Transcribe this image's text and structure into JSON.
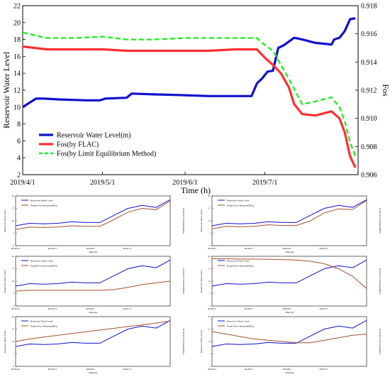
{
  "main": {
    "ylabel": "Reservoir Water Level",
    "ylabel_right": "Fos",
    "xlabel": "Time (h)",
    "legend": {
      "water": "Reservoir Water Level(m)",
      "flac": "Fos(by FLAC)",
      "lem": "Fos(by Limit Equilibrium Method)"
    }
  },
  "small_panels": {
    "ylabel": "Reservoir Water Level",
    "xlabel": "Time (h)",
    "legend_water": "Reservoir Water Level",
    "pore_labels": [
      "Point6-Pore Pressure(KPa)",
      "Point5-Pore Pressure(KPa)",
      "Point4-Pore Pressure(KPa)",
      "Point3-Pore Pressure(KPa)",
      "Point2-Pore Pressure(KPa)",
      "Point1-Pore Pressure(KPa)"
    ],
    "right_ylabel": "Point-Pore Pressure(KPa)"
  },
  "colors": {
    "water": "#1010cc",
    "flac": "#ff3030",
    "lem": "#22ee22",
    "pore": "#a0522d"
  },
  "chart_data": [
    {
      "type": "line",
      "title": "",
      "xlabel": "Time (h)",
      "ylabel": "Reservoir Water Level",
      "ylabel_right": "Fos",
      "x_ticks": [
        "2019/4/1",
        "2019/5/1",
        "2019/6/1",
        "2019/7/1"
      ],
      "xlim": [
        "2019/4/1",
        "2019/8/5"
      ],
      "ylim": [
        2,
        22
      ],
      "y_ticks": [
        2,
        4,
        6,
        8,
        10,
        12,
        14,
        16,
        18,
        20,
        22
      ],
      "ylim_right": [
        0.906,
        0.918
      ],
      "y_ticks_right": [
        0.906,
        0.908,
        0.91,
        0.912,
        0.914,
        0.916,
        0.918
      ],
      "legend_position": "lower-left",
      "series": [
        {
          "name": "Reservoir Water Level(m)",
          "axis": "left",
          "x": [
            "2019/4/1",
            "2019/4/3",
            "2019/4/6",
            "2019/4/9",
            "2019/4/15",
            "2019/4/25",
            "2019/4/30",
            "2019/5/2",
            "2019/5/10",
            "2019/5/12",
            "2019/5/20",
            "2019/6/1",
            "2019/6/10",
            "2019/6/20",
            "2019/6/26",
            "2019/6/28",
            "2019/6/30",
            "2019/7/2",
            "2019/7/4",
            "2019/7/6",
            "2019/7/8",
            "2019/7/12",
            "2019/7/15",
            "2019/7/20",
            "2019/7/26",
            "2019/7/27",
            "2019/7/29",
            "2019/7/31",
            "2019/8/2",
            "2019/8/4"
          ],
          "y": [
            10.0,
            10.4,
            11.0,
            11.0,
            10.9,
            10.8,
            10.8,
            11.0,
            11.1,
            11.6,
            11.5,
            11.4,
            11.3,
            11.3,
            11.3,
            12.8,
            13.4,
            14.2,
            14.3,
            17.0,
            17.3,
            18.2,
            18.0,
            17.6,
            17.4,
            18.0,
            18.2,
            19.0,
            20.4,
            20.5
          ]
        },
        {
          "name": "Fos(by FLAC)",
          "axis": "right",
          "x": [
            "2019/4/1",
            "2019/4/10",
            "2019/4/20",
            "2019/5/1",
            "2019/5/10",
            "2019/5/20",
            "2019/6/1",
            "2019/6/10",
            "2019/6/20",
            "2019/6/28",
            "2019/7/1",
            "2019/7/4",
            "2019/7/7",
            "2019/7/10",
            "2019/7/12",
            "2019/7/15",
            "2019/7/20",
            "2019/7/26",
            "2019/7/29",
            "2019/7/31",
            "2019/8/2",
            "2019/8/4"
          ],
          "y": [
            0.9151,
            0.9149,
            0.9149,
            0.9149,
            0.9148,
            0.9148,
            0.9148,
            0.9148,
            0.9149,
            0.9149,
            0.9143,
            0.9138,
            0.9132,
            0.9122,
            0.911,
            0.9103,
            0.9102,
            0.9105,
            0.91,
            0.909,
            0.9073,
            0.9065
          ]
        },
        {
          "name": "Fos(by Limit Equilibrium Method)",
          "axis": "right",
          "x": [
            "2019/4/1",
            "2019/4/10",
            "2019/4/20",
            "2019/5/1",
            "2019/5/10",
            "2019/5/20",
            "2019/6/1",
            "2019/6/10",
            "2019/6/20",
            "2019/6/28",
            "2019/7/1",
            "2019/7/4",
            "2019/7/7",
            "2019/7/10",
            "2019/7/15",
            "2019/7/20",
            "2019/7/26",
            "2019/7/29",
            "2019/7/31",
            "2019/8/2",
            "2019/8/4"
          ],
          "y": [
            0.9161,
            0.9157,
            0.9157,
            0.9158,
            0.9156,
            0.9156,
            0.9157,
            0.9157,
            0.9157,
            0.9157,
            0.9152,
            0.9148,
            0.9138,
            0.9128,
            0.911,
            0.9112,
            0.9115,
            0.9108,
            0.9098,
            0.9083,
            0.9073
          ]
        }
      ]
    },
    {
      "type": "line",
      "xlabel": "Time (h)",
      "ylabel": "Reservoir Water Level",
      "series": [
        {
          "name": "Reservoir Water Level",
          "y": [
            10.0,
            11.0,
            10.8,
            11.0,
            11.6,
            11.3,
            11.3,
            14.2,
            17.0,
            18.2,
            17.4,
            20.5
          ]
        },
        {
          "name": "Point6-Pore Pressure(KPa)",
          "y": [
            8.5,
            9.5,
            9.3,
            9.5,
            10.0,
            9.8,
            9.8,
            12.5,
            15.5,
            17.0,
            16.5,
            20.0
          ]
        }
      ]
    },
    {
      "type": "line",
      "xlabel": "Time (h)",
      "ylabel": "Reservoir Water Level",
      "series": [
        {
          "name": "Reservoir Water Level",
          "y": [
            10.0,
            11.0,
            10.8,
            11.0,
            11.6,
            11.3,
            11.3,
            14.2,
            17.0,
            18.2,
            17.4,
            20.5
          ]
        },
        {
          "name": "Point5-Pore Pressure(KPa)",
          "y": [
            8.8,
            9.8,
            9.6,
            9.8,
            10.4,
            10.1,
            10.1,
            12.0,
            15.2,
            16.8,
            16.5,
            20.2
          ]
        }
      ]
    },
    {
      "type": "line",
      "xlabel": "Time (h)",
      "ylabel": "Reservoir Water Level",
      "series": [
        {
          "name": "Reservoir Water Level",
          "y": [
            10.0,
            11.0,
            10.8,
            11.0,
            11.6,
            11.3,
            11.3,
            14.2,
            17.0,
            18.2,
            17.4,
            20.5
          ]
        },
        {
          "name": "Point4-Pore Pressure(KPa)",
          "y": [
            8.0,
            8.3,
            8.3,
            8.3,
            8.3,
            8.3,
            8.3,
            8.6,
            9.5,
            10.6,
            11.3,
            12.0
          ]
        }
      ]
    },
    {
      "type": "line",
      "xlabel": "Time (h)",
      "ylabel": "Reservoir Water Level",
      "series": [
        {
          "name": "Reservoir Water Level",
          "y": [
            10.0,
            11.0,
            10.8,
            11.0,
            11.6,
            11.3,
            11.3,
            14.2,
            17.0,
            18.2,
            17.4,
            20.5
          ]
        },
        {
          "name": "Point3-Pore Pressure(KPa)",
          "y": [
            21.0,
            21.0,
            20.9,
            20.9,
            20.8,
            20.7,
            20.5,
            20.0,
            19.0,
            17.0,
            14.0,
            9.0
          ]
        }
      ]
    },
    {
      "type": "line",
      "xlabel": "Time (h)",
      "ylabel": "Reservoir Water Level",
      "series": [
        {
          "name": "Reservoir Water Level",
          "y": [
            10.0,
            11.0,
            10.8,
            11.0,
            11.6,
            11.3,
            11.3,
            14.2,
            17.0,
            18.2,
            17.4,
            20.5
          ]
        },
        {
          "name": "Point2-Pore Pressure(KPa)",
          "y": [
            12.0,
            13.0,
            13.8,
            14.5,
            15.2,
            15.9,
            16.6,
            17.3,
            18.0,
            18.7,
            19.4,
            20.2
          ]
        }
      ]
    },
    {
      "type": "line",
      "xlabel": "Time (h)",
      "ylabel": "Reservoir Water Level",
      "series": [
        {
          "name": "Reservoir Water Level",
          "y": [
            10.0,
            11.0,
            10.8,
            11.0,
            11.6,
            11.3,
            11.3,
            14.2,
            17.0,
            18.2,
            17.4,
            20.5
          ]
        },
        {
          "name": "Point1-Pore Pressure(KPa)",
          "y": [
            16.0,
            15.0,
            14.0,
            13.0,
            12.5,
            12.0,
            11.5,
            11.5,
            12.5,
            13.5,
            14.5,
            15.0
          ]
        }
      ]
    }
  ]
}
